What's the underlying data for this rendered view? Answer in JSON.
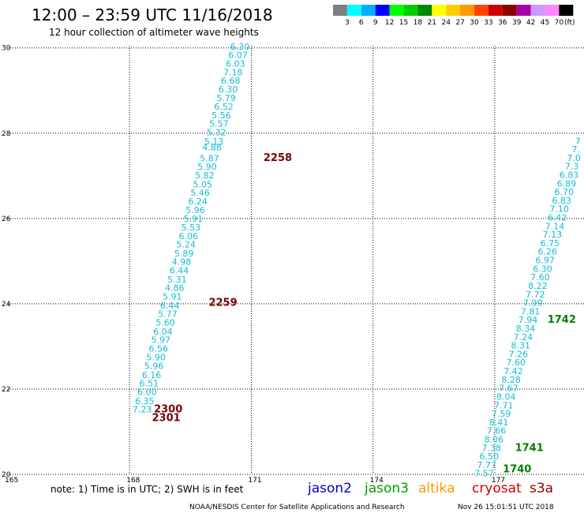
{
  "header": {
    "title": "12:00 – 23:59 UTC 11/16/2018",
    "subtitle": "12 hour collection of altimeter wave heights"
  },
  "legend": {
    "unit": "(ft)",
    "bins": [
      {
        "label": "3",
        "color": "#7f7f7f"
      },
      {
        "label": "6",
        "color": "#00ffff"
      },
      {
        "label": "9",
        "color": "#00b0ff"
      },
      {
        "label": "12",
        "color": "#0000ff"
      },
      {
        "label": "15",
        "color": "#00ff00"
      },
      {
        "label": "18",
        "color": "#00cc00"
      },
      {
        "label": "21",
        "color": "#008800"
      },
      {
        "label": "24",
        "color": "#ffff00"
      },
      {
        "label": "27",
        "color": "#ffcc00"
      },
      {
        "label": "30",
        "color": "#ff9900"
      },
      {
        "label": "33",
        "color": "#ff4400"
      },
      {
        "label": "36",
        "color": "#cc0000"
      },
      {
        "label": "39",
        "color": "#880000"
      },
      {
        "label": "42",
        "color": "#aa00aa"
      },
      {
        "label": "45",
        "color": "#cc99ff"
      },
      {
        "label": "70",
        "color": "#ff88ff"
      },
      {
        "label": "",
        "color": "#000000"
      }
    ]
  },
  "map": {
    "lon_ticks": [
      "165",
      "168",
      "171",
      "174",
      "177"
    ],
    "lat_ticks": [
      "30",
      "28",
      "26",
      "24",
      "22",
      "20"
    ],
    "lon_range": [
      165,
      179.2
    ],
    "lat_range": [
      20,
      30.05
    ],
    "grid_color": "#000000",
    "track_color": "#12bcd6",
    "track_a": [
      {
        "lat": 29.96,
        "lon": 170.72,
        "v": "6.30"
      },
      {
        "lat": 29.76,
        "lon": 170.67,
        "v": "6.07"
      },
      {
        "lat": 29.56,
        "lon": 170.61,
        "v": "6.03"
      },
      {
        "lat": 29.36,
        "lon": 170.55,
        "v": "7.18"
      },
      {
        "lat": 29.16,
        "lon": 170.49,
        "v": "6.68"
      },
      {
        "lat": 28.96,
        "lon": 170.43,
        "v": "6.30"
      },
      {
        "lat": 28.75,
        "lon": 170.38,
        "v": "5.79"
      },
      {
        "lat": 28.55,
        "lon": 170.32,
        "v": "6.52"
      },
      {
        "lat": 28.35,
        "lon": 170.26,
        "v": "5.56"
      },
      {
        "lat": 28.15,
        "lon": 170.2,
        "v": "5.57"
      },
      {
        "lat": 27.95,
        "lon": 170.14,
        "v": "5.32"
      },
      {
        "lat": 27.74,
        "lon": 170.08,
        "v": "5.13"
      },
      {
        "lat": 27.6,
        "lon": 170.03,
        "v": "4.88"
      },
      {
        "lat": 27.34,
        "lon": 169.97,
        "v": "5.87"
      },
      {
        "lat": 27.14,
        "lon": 169.91,
        "v": "5.90"
      },
      {
        "lat": 26.94,
        "lon": 169.85,
        "v": "5.82"
      },
      {
        "lat": 26.73,
        "lon": 169.8,
        "v": "5.05"
      },
      {
        "lat": 26.53,
        "lon": 169.74,
        "v": "5.46"
      },
      {
        "lat": 26.33,
        "lon": 169.68,
        "v": "6.24"
      },
      {
        "lat": 26.13,
        "lon": 169.62,
        "v": "5.96"
      },
      {
        "lat": 25.92,
        "lon": 169.57,
        "v": "5.91"
      },
      {
        "lat": 25.72,
        "lon": 169.51,
        "v": "5.53"
      },
      {
        "lat": 25.52,
        "lon": 169.45,
        "v": "6.06"
      },
      {
        "lat": 25.32,
        "lon": 169.39,
        "v": "5.24"
      },
      {
        "lat": 25.11,
        "lon": 169.34,
        "v": "5.89"
      },
      {
        "lat": 24.91,
        "lon": 169.28,
        "v": "4.98"
      },
      {
        "lat": 24.71,
        "lon": 169.22,
        "v": "6.44"
      },
      {
        "lat": 24.5,
        "lon": 169.17,
        "v": "5.31"
      },
      {
        "lat": 24.3,
        "lon": 169.11,
        "v": "4.86"
      },
      {
        "lat": 24.1,
        "lon": 169.05,
        "v": "5.91"
      },
      {
        "lat": 23.89,
        "lon": 168.99,
        "v": "6.44"
      },
      {
        "lat": 23.69,
        "lon": 168.94,
        "v": "5.77"
      },
      {
        "lat": 23.49,
        "lon": 168.88,
        "v": "5.60"
      },
      {
        "lat": 23.28,
        "lon": 168.82,
        "v": "6.04"
      },
      {
        "lat": 23.08,
        "lon": 168.77,
        "v": "5.97"
      },
      {
        "lat": 22.88,
        "lon": 168.71,
        "v": "6.56"
      },
      {
        "lat": 22.67,
        "lon": 168.65,
        "v": "5.90"
      },
      {
        "lat": 22.47,
        "lon": 168.6,
        "v": "5.96"
      },
      {
        "lat": 22.26,
        "lon": 168.54,
        "v": "6.16"
      },
      {
        "lat": 22.06,
        "lon": 168.48,
        "v": "6.51"
      },
      {
        "lat": 21.86,
        "lon": 168.43,
        "v": "6.00"
      },
      {
        "lat": 21.65,
        "lon": 168.37,
        "v": "6.35"
      },
      {
        "lat": 21.45,
        "lon": 168.31,
        "v": "7.23"
      }
    ],
    "track_b": [
      {
        "lat": 27.75,
        "lon": 179.05,
        "v": "7"
      },
      {
        "lat": 27.55,
        "lon": 179.0,
        "v": "7."
      },
      {
        "lat": 27.35,
        "lon": 178.95,
        "v": "7.0"
      },
      {
        "lat": 27.15,
        "lon": 178.9,
        "v": "7.3"
      },
      {
        "lat": 26.95,
        "lon": 178.83,
        "v": "6.83"
      },
      {
        "lat": 26.75,
        "lon": 178.77,
        "v": "6.89"
      },
      {
        "lat": 26.55,
        "lon": 178.71,
        "v": "6.70"
      },
      {
        "lat": 26.35,
        "lon": 178.65,
        "v": "6.83"
      },
      {
        "lat": 26.15,
        "lon": 178.59,
        "v": "7.10"
      },
      {
        "lat": 25.95,
        "lon": 178.54,
        "v": "6.42"
      },
      {
        "lat": 25.75,
        "lon": 178.48,
        "v": "7.14"
      },
      {
        "lat": 25.55,
        "lon": 178.42,
        "v": "7.13"
      },
      {
        "lat": 25.35,
        "lon": 178.36,
        "v": "6.75"
      },
      {
        "lat": 25.15,
        "lon": 178.3,
        "v": "6.26"
      },
      {
        "lat": 24.95,
        "lon": 178.24,
        "v": "6.97"
      },
      {
        "lat": 24.75,
        "lon": 178.18,
        "v": "6.30"
      },
      {
        "lat": 24.55,
        "lon": 178.12,
        "v": "7.60"
      },
      {
        "lat": 24.35,
        "lon": 178.06,
        "v": "8.22"
      },
      {
        "lat": 24.15,
        "lon": 178.0,
        "v": "7.72"
      },
      {
        "lat": 23.95,
        "lon": 177.94,
        "v": "7.99"
      },
      {
        "lat": 23.75,
        "lon": 177.88,
        "v": "7.81"
      },
      {
        "lat": 23.55,
        "lon": 177.82,
        "v": "7.94"
      },
      {
        "lat": 23.35,
        "lon": 177.76,
        "v": "8.34"
      },
      {
        "lat": 23.15,
        "lon": 177.7,
        "v": "7.24"
      },
      {
        "lat": 22.95,
        "lon": 177.64,
        "v": "8.31"
      },
      {
        "lat": 22.75,
        "lon": 177.58,
        "v": "7.26"
      },
      {
        "lat": 22.55,
        "lon": 177.52,
        "v": "7.60"
      },
      {
        "lat": 22.35,
        "lon": 177.46,
        "v": "7.42"
      },
      {
        "lat": 22.15,
        "lon": 177.4,
        "v": "8.28"
      },
      {
        "lat": 21.95,
        "lon": 177.34,
        "v": "7.67"
      },
      {
        "lat": 21.75,
        "lon": 177.28,
        "v": "8.04"
      },
      {
        "lat": 21.55,
        "lon": 177.22,
        "v": "7.71"
      },
      {
        "lat": 21.35,
        "lon": 177.16,
        "v": "7.59"
      },
      {
        "lat": 21.15,
        "lon": 177.1,
        "v": "8.41"
      },
      {
        "lat": 20.95,
        "lon": 177.04,
        "v": "7.66"
      },
      {
        "lat": 20.75,
        "lon": 176.98,
        "v": "8.06"
      },
      {
        "lat": 20.55,
        "lon": 176.92,
        "v": "7.38"
      },
      {
        "lat": 20.35,
        "lon": 176.86,
        "v": "6.50"
      },
      {
        "lat": 20.15,
        "lon": 176.8,
        "v": "7.77"
      },
      {
        "lat": 19.95,
        "lon": 176.74,
        "v": "7.57"
      }
    ],
    "time_labels": [
      {
        "lat": 27.35,
        "lon": 171.3,
        "text": "2258",
        "color": "#7a0000"
      },
      {
        "lat": 23.95,
        "lon": 169.95,
        "text": "2259",
        "color": "#7a0000"
      },
      {
        "lat": 21.45,
        "lon": 168.6,
        "text": "2300",
        "color": "#7a0000"
      },
      {
        "lat": 21.25,
        "lon": 168.55,
        "text": "2301",
        "color": "#7a0000"
      },
      {
        "lat": 23.55,
        "lon": 178.3,
        "text": "1742",
        "color": "#008000"
      },
      {
        "lat": 20.55,
        "lon": 177.5,
        "text": "1741",
        "color": "#008000"
      },
      {
        "lat": 20.05,
        "lon": 177.2,
        "text": "1740",
        "color": "#008000"
      }
    ]
  },
  "footer": {
    "note": "note: 1) Time is in UTC; 2) SWH is in feet",
    "satellites": [
      {
        "name": "jason2",
        "color": "#0000cc"
      },
      {
        "name": "jason3",
        "color": "#009900"
      },
      {
        "name": "altika",
        "color": "#ff9900"
      },
      {
        "name": "cryosat",
        "color": "#cc0000"
      },
      {
        "name": "s3a",
        "color": "#880000"
      }
    ],
    "credit": "NOAA/NESDIS Center for Satellite Applications and Research",
    "timestamp": "Nov 26 15:01:51 UTC 2018"
  }
}
